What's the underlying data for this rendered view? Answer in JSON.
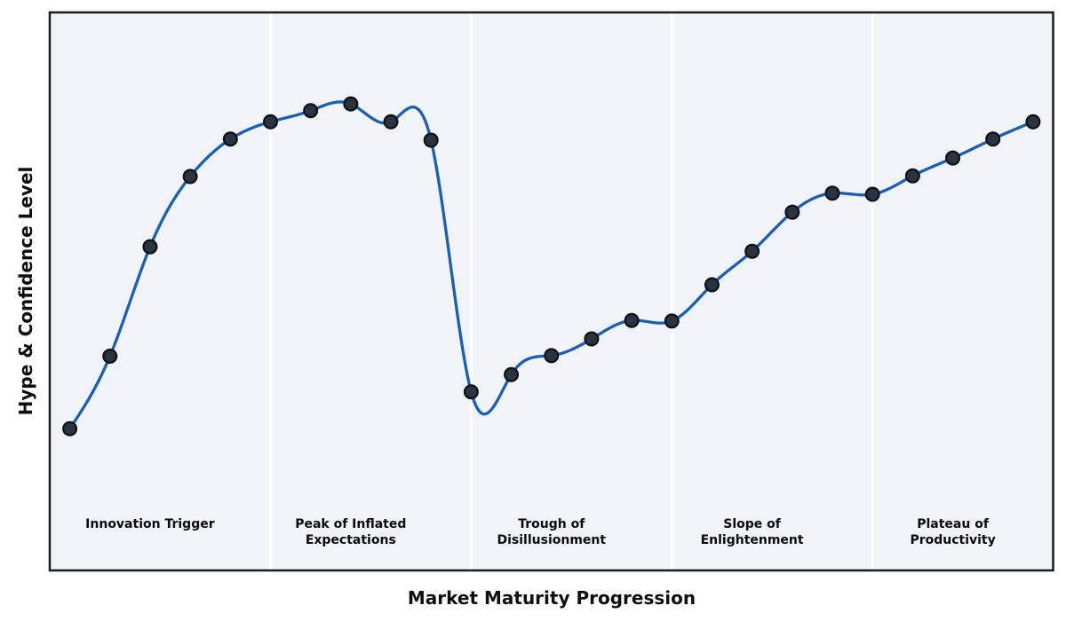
{
  "figure": {
    "background": "#ffffff",
    "plot_background": "#f0f4f8",
    "border_color": "#1c1c1c",
    "border_width": 2.5,
    "divider_color": "#ffffff",
    "divider_width": 3
  },
  "chart_data": {
    "type": "line",
    "title": "",
    "xlabel": "Market Maturity Progression",
    "ylabel": "Hype & Confidence Level",
    "x": [
      0,
      1,
      2,
      3,
      4,
      5,
      6,
      7,
      8,
      9,
      10,
      11,
      12,
      13,
      14,
      15,
      16,
      17,
      18,
      19,
      20,
      21,
      22,
      23,
      24
    ],
    "y": [
      25.4,
      38.4,
      58.0,
      70.6,
      77.3,
      80.4,
      82.4,
      83.6,
      80.4,
      77.1,
      32.0,
      35.1,
      38.5,
      41.5,
      44.8,
      44.7,
      51.2,
      57.2,
      64.2,
      67.6,
      67.4,
      70.7,
      73.9,
      77.3,
      80.4
    ],
    "xlim": [
      -0.5,
      24.5
    ],
    "ylim": [
      0,
      100
    ],
    "grid": false,
    "ticks": "none",
    "legend": "none",
    "smoothing": "cubic-spline",
    "line_color": "#1a5fb4",
    "line_width": 3.3,
    "marker": {
      "shape": "circle",
      "radius": 7.4,
      "fill": "#2a3340",
      "edge": "#0c1016",
      "edge_width": 2.2
    },
    "phase_dividers_x": [
      5,
      10,
      15,
      20
    ],
    "phases": [
      {
        "label_lines": [
          "Innovation Trigger"
        ],
        "center_x": 2
      },
      {
        "label_lines": [
          "Peak of Inflated",
          "Expectations"
        ],
        "center_x": 7
      },
      {
        "label_lines": [
          "Trough of",
          "Disillusionment"
        ],
        "center_x": 12
      },
      {
        "label_lines": [
          "Slope of",
          "Enlightenment"
        ],
        "center_x": 17
      },
      {
        "label_lines": [
          "Plateau of",
          "Productivity"
        ],
        "center_x": 22
      }
    ],
    "phase_label_style": {
      "font_size": 14,
      "color": "#0a0a0a",
      "first_baseline_y": 595,
      "line_spacing": 18
    }
  }
}
